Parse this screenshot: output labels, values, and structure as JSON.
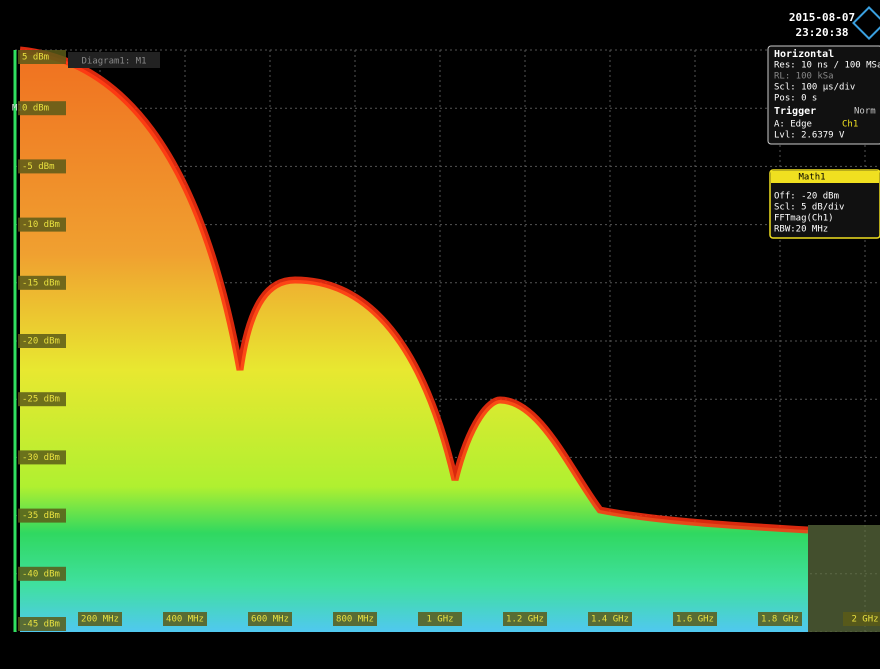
{
  "header": {
    "date": "2015-08-07",
    "time": "23:20:38"
  },
  "diagram": {
    "label": "Diagram1: M1",
    "marker": "M1"
  },
  "y_axis": {
    "labels": [
      "5 dBm",
      "0 dBm",
      "-5 dBm",
      "-10 dBm",
      "-15 dBm",
      "-20 dBm",
      "-25 dBm",
      "-30 dBm",
      "-35 dBm",
      "-40 dBm",
      "-45 dBm"
    ]
  },
  "x_axis": {
    "labels": [
      "200 MHz",
      "400 MHz",
      "600 MHz",
      "800 MHz",
      "1 GHz",
      "1.2 GHz",
      "1.4 GHz",
      "1.6 GHz",
      "1.8 GHz",
      "2 GHz"
    ]
  },
  "horizontal": {
    "title": "Horizontal",
    "lines": [
      "Res: 10 ns / 100 MSa",
      "RL: 100 kSa",
      "Scl: 100 µs/div",
      "Pos: 0 s"
    ]
  },
  "trigger": {
    "title": "Trigger",
    "mode": "Norm",
    "source": "A:  Edge",
    "channel": "Ch1",
    "level": "Lvl:  2.6379 V"
  },
  "math": {
    "title": "Math1",
    "lines": [
      "Off:  -20 dBm",
      "Scl:  5 dB/div",
      "FFTmag(Ch1)",
      "RBW:20 MHz"
    ]
  }
}
